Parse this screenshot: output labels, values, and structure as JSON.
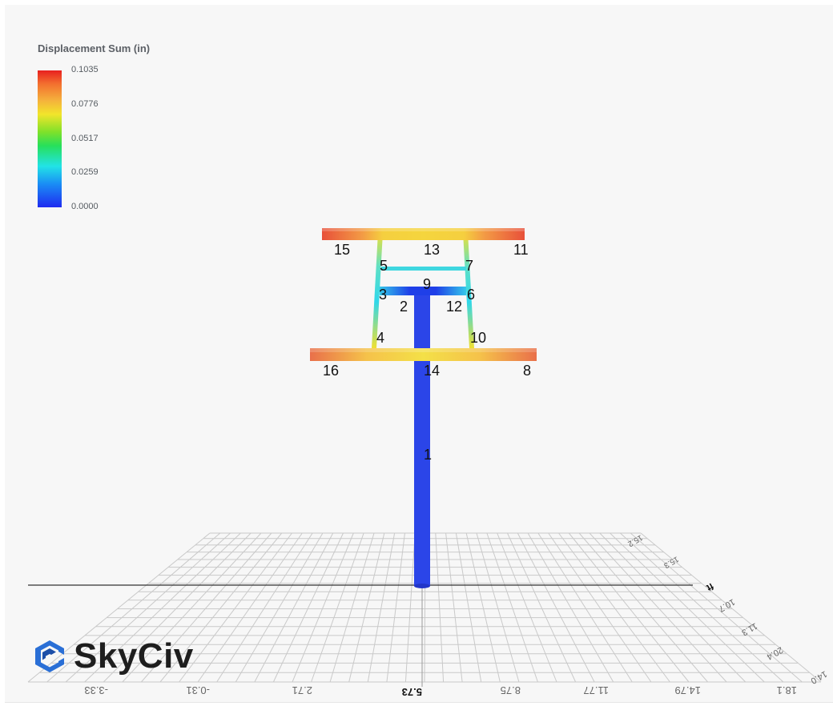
{
  "legend": {
    "title": "Displacement Sum (in)",
    "ticks": [
      "0.1035",
      "0.0776",
      "0.0517",
      "0.0259",
      "0.0000"
    ],
    "colors": {
      "max": "#e8201f",
      "high": "#f5b23c",
      "mid": "#27e05a",
      "low": "#22e3e6",
      "min": "#1f2bf0"
    }
  },
  "nodes": {
    "n1": "1",
    "n2": "2",
    "n3": "3",
    "n4": "4",
    "n5": "5",
    "n6": "6",
    "n7": "7",
    "n8": "8",
    "n9": "9",
    "n10": "10",
    "n11": "11",
    "n12": "12",
    "n13": "13",
    "n14": "14",
    "n15": "15",
    "n16": "16"
  },
  "grid": {
    "x_ticks": [
      "-3.33",
      "-0.31",
      "2.71",
      "5.73",
      "8.75",
      "11.77",
      "14.79",
      "18.1"
    ],
    "side_ticks": [
      "15.2",
      "15.3",
      "ft",
      "10.7",
      "11.3",
      "20.4",
      "14.0"
    ]
  },
  "logo": {
    "text": "SkyCiv"
  }
}
